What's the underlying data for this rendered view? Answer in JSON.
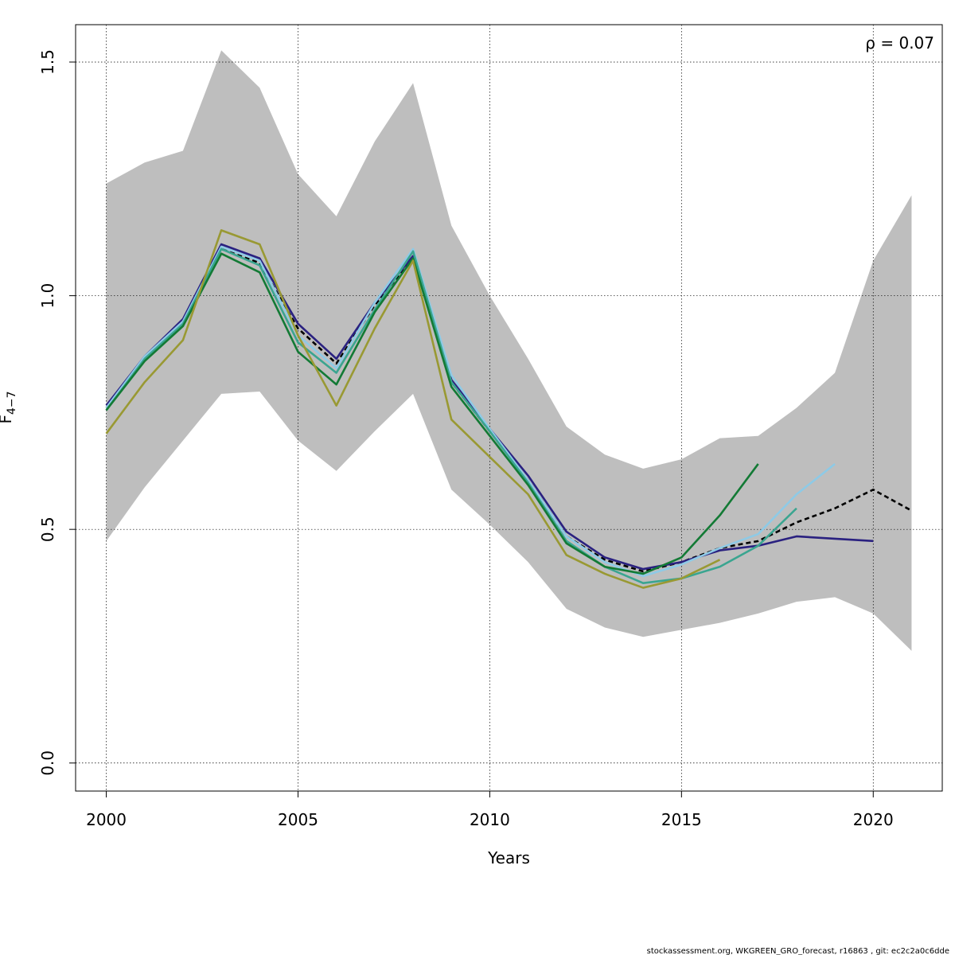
{
  "chart_data": {
    "type": "line",
    "xlabel": "Years",
    "ylabel_main": "F",
    "ylabel_sub": "4−7",
    "annotation": "ρ = 0.07",
    "footer": "stockassessment.org, WKGREEN_GRO_forecast, r16863 , git: ec2c2a0c6dde",
    "xlim": [
      1999.2,
      2021.8
    ],
    "ylim": [
      -0.06,
      1.58
    ],
    "x_ticks": [
      2000,
      2005,
      2010,
      2015,
      2020
    ],
    "y_ticks": [
      0.0,
      0.5,
      1.0,
      1.5
    ],
    "grid": true,
    "band": {
      "x": [
        2000,
        2001,
        2002,
        2003,
        2004,
        2005,
        2006,
        2007,
        2008,
        2009,
        2010,
        2011,
        2012,
        2013,
        2014,
        2015,
        2016,
        2017,
        2018,
        2019,
        2020,
        2021
      ],
      "upper": [
        1.24,
        1.285,
        1.31,
        1.525,
        1.445,
        1.26,
        1.17,
        1.33,
        1.455,
        1.15,
        1.0,
        0.865,
        0.72,
        0.66,
        0.63,
        0.65,
        0.695,
        0.7,
        0.76,
        0.835,
        1.075,
        1.215
      ],
      "lower": [
        0.475,
        0.59,
        0.69,
        0.79,
        0.795,
        0.69,
        0.625,
        0.71,
        0.79,
        0.585,
        0.51,
        0.43,
        0.33,
        0.29,
        0.27,
        0.285,
        0.3,
        0.32,
        0.345,
        0.355,
        0.32,
        0.24
      ],
      "color": "#bebebe"
    },
    "series": [
      {
        "color": "#000000",
        "dashed": true,
        "x": [
          2000,
          2001,
          2002,
          2003,
          2004,
          2005,
          2006,
          2007,
          2008,
          2009,
          2010,
          2011,
          2012,
          2013,
          2014,
          2015,
          2016,
          2017,
          2018,
          2019,
          2020,
          2021
        ],
        "y": [
          0.76,
          0.865,
          0.945,
          1.1,
          1.07,
          0.93,
          0.855,
          0.98,
          1.08,
          0.815,
          0.71,
          0.605,
          0.485,
          0.435,
          0.41,
          0.43,
          0.46,
          0.475,
          0.515,
          0.545,
          0.585,
          0.54
        ]
      },
      {
        "color": "#2a2180",
        "dashed": false,
        "x": [
          2000,
          2001,
          2002,
          2003,
          2004,
          2005,
          2006,
          2007,
          2008,
          2009,
          2010,
          2011,
          2012,
          2013,
          2014,
          2015,
          2016,
          2017,
          2018,
          2019,
          2020
        ],
        "y": [
          0.765,
          0.87,
          0.95,
          1.11,
          1.08,
          0.94,
          0.865,
          0.985,
          1.085,
          0.82,
          0.715,
          0.615,
          0.495,
          0.44,
          0.415,
          0.43,
          0.455,
          0.465,
          0.485,
          0.48,
          0.475
        ]
      },
      {
        "color": "#8ecae6",
        "dashed": false,
        "x": [
          2000,
          2001,
          2002,
          2003,
          2004,
          2005,
          2006,
          2007,
          2008,
          2009,
          2010,
          2011,
          2012,
          2013,
          2014,
          2015,
          2016,
          2017,
          2018,
          2019
        ],
        "y": [
          0.76,
          0.87,
          0.945,
          1.105,
          1.075,
          0.915,
          0.845,
          0.985,
          1.1,
          0.83,
          0.715,
          0.605,
          0.485,
          0.43,
          0.4,
          0.425,
          0.46,
          0.49,
          0.575,
          0.64
        ]
      },
      {
        "color": "#3aa590",
        "dashed": false,
        "x": [
          2000,
          2001,
          2002,
          2003,
          2004,
          2005,
          2006,
          2007,
          2008,
          2009,
          2010,
          2011,
          2012,
          2013,
          2014,
          2015,
          2016,
          2017,
          2018
        ],
        "y": [
          0.755,
          0.865,
          0.94,
          1.1,
          1.065,
          0.9,
          0.835,
          0.97,
          1.095,
          0.815,
          0.71,
          0.6,
          0.475,
          0.42,
          0.385,
          0.395,
          0.42,
          0.465,
          0.545
        ]
      },
      {
        "color": "#137a35",
        "dashed": false,
        "x": [
          2000,
          2001,
          2002,
          2003,
          2004,
          2005,
          2006,
          2007,
          2008,
          2009,
          2010,
          2011,
          2012,
          2013,
          2014,
          2015,
          2016,
          2017
        ],
        "y": [
          0.755,
          0.86,
          0.935,
          1.09,
          1.05,
          0.88,
          0.81,
          0.965,
          1.08,
          0.805,
          0.7,
          0.595,
          0.47,
          0.42,
          0.405,
          0.44,
          0.53,
          0.64
        ]
      },
      {
        "color": "#999933",
        "dashed": false,
        "x": [
          2000,
          2001,
          2002,
          2003,
          2004,
          2005,
          2006,
          2007,
          2008,
          2009,
          2010,
          2011,
          2012,
          2013,
          2014,
          2015,
          2016
        ],
        "y": [
          0.705,
          0.815,
          0.905,
          1.14,
          1.11,
          0.915,
          0.765,
          0.93,
          1.075,
          0.735,
          0.655,
          0.575,
          0.445,
          0.405,
          0.375,
          0.395,
          0.435
        ]
      }
    ]
  }
}
